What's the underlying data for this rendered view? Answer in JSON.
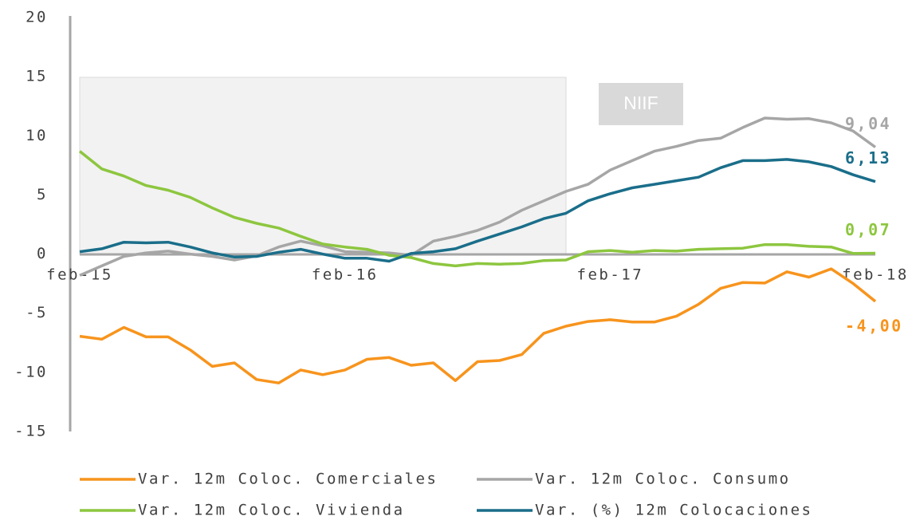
{
  "chart_data": {
    "type": "line",
    "categories": [
      "feb-15",
      null,
      null,
      null,
      null,
      null,
      null,
      null,
      null,
      null,
      null,
      null,
      "feb-16",
      null,
      null,
      null,
      null,
      null,
      null,
      null,
      null,
      null,
      null,
      null,
      "feb-17",
      null,
      null,
      null,
      null,
      null,
      null,
      null,
      null,
      null,
      null,
      null,
      "feb-18"
    ],
    "series": [
      {
        "name": "Var. 12m Coloc. Comerciales",
        "color": "#f7941d",
        "values": [
          -6.95,
          -7.2,
          -6.2,
          -7.0,
          -7.0,
          -8.1,
          -9.5,
          -9.2,
          -10.6,
          -10.9,
          -9.8,
          -10.2,
          -9.8,
          -8.9,
          -8.75,
          -9.4,
          -9.2,
          -10.7,
          -9.1,
          -9.0,
          -8.5,
          -6.7,
          -6.1,
          -5.7,
          -5.55,
          -5.75,
          -5.75,
          -5.25,
          -4.25,
          -2.9,
          -2.4,
          -2.45,
          -1.5,
          -1.95,
          -1.25,
          -2.5,
          -4.0
        ],
        "value_labels": [
          null,
          null,
          null,
          null,
          null,
          null,
          null,
          null,
          null,
          null,
          null,
          null,
          null,
          null,
          null,
          null,
          null,
          null,
          null,
          null,
          null,
          null,
          null,
          null,
          null,
          null,
          null,
          null,
          null,
          null,
          null,
          null,
          null,
          null,
          null,
          null,
          "-4,00"
        ]
      },
      {
        "name": "Var. 12m Coloc. Consumo",
        "color": "#a6a6a6",
        "values": [
          -1.8,
          -1.0,
          -0.2,
          0.1,
          0.25,
          0.0,
          -0.2,
          -0.5,
          -0.15,
          0.6,
          1.1,
          0.7,
          0.2,
          0.15,
          0.1,
          -0.1,
          1.1,
          1.5,
          2.0,
          2.7,
          3.7,
          4.5,
          5.3,
          5.9,
          7.1,
          7.9,
          8.7,
          9.1,
          9.6,
          9.8,
          10.7,
          11.5,
          11.4,
          11.45,
          11.1,
          10.4,
          9.04
        ],
        "value_labels": [
          null,
          null,
          null,
          null,
          null,
          null,
          null,
          null,
          null,
          null,
          null,
          null,
          null,
          null,
          null,
          null,
          null,
          null,
          null,
          null,
          null,
          null,
          null,
          null,
          null,
          null,
          null,
          null,
          null,
          null,
          null,
          null,
          null,
          null,
          null,
          null,
          "9,04"
        ]
      },
      {
        "name": "Var. 12m Coloc. Vivienda",
        "color": "#8dc63f",
        "values": [
          8.7,
          7.2,
          6.6,
          5.8,
          5.4,
          4.8,
          3.9,
          3.1,
          2.6,
          2.2,
          1.5,
          0.85,
          0.6,
          0.4,
          -0.1,
          -0.3,
          -0.8,
          -1.0,
          -0.8,
          -0.85,
          -0.8,
          -0.55,
          -0.5,
          0.2,
          0.3,
          0.15,
          0.3,
          0.25,
          0.4,
          0.45,
          0.5,
          0.8,
          0.8,
          0.65,
          0.6,
          0.05,
          0.07
        ],
        "value_labels": [
          null,
          null,
          null,
          null,
          null,
          null,
          null,
          null,
          null,
          null,
          null,
          null,
          null,
          null,
          null,
          null,
          null,
          null,
          null,
          null,
          null,
          null,
          null,
          null,
          null,
          null,
          null,
          null,
          null,
          null,
          null,
          null,
          null,
          null,
          null,
          null,
          "0,07"
        ]
      },
      {
        "name": "Var. (%) 12m Colocaciones",
        "color": "#1a6e8a",
        "values": [
          0.2,
          0.45,
          1.0,
          0.95,
          1.0,
          0.6,
          0.1,
          -0.25,
          -0.2,
          0.15,
          0.4,
          0.0,
          -0.35,
          -0.35,
          -0.6,
          0.05,
          0.2,
          0.45,
          1.1,
          1.7,
          2.3,
          3.0,
          3.45,
          4.5,
          5.1,
          5.6,
          5.9,
          6.2,
          6.5,
          7.3,
          7.9,
          7.9,
          8.0,
          7.8,
          7.4,
          6.7,
          6.13
        ],
        "value_labels": [
          null,
          null,
          null,
          null,
          null,
          null,
          null,
          null,
          null,
          null,
          null,
          null,
          null,
          null,
          null,
          null,
          null,
          null,
          null,
          null,
          null,
          null,
          null,
          null,
          null,
          null,
          null,
          null,
          null,
          null,
          null,
          null,
          null,
          null,
          null,
          null,
          "6,13"
        ]
      }
    ],
    "ylim": [
      -15,
      20
    ],
    "yticks": [
      -15,
      -10,
      -5,
      0,
      5,
      10,
      15,
      20
    ],
    "annotations": [
      {
        "text": "NIIF"
      }
    ]
  }
}
